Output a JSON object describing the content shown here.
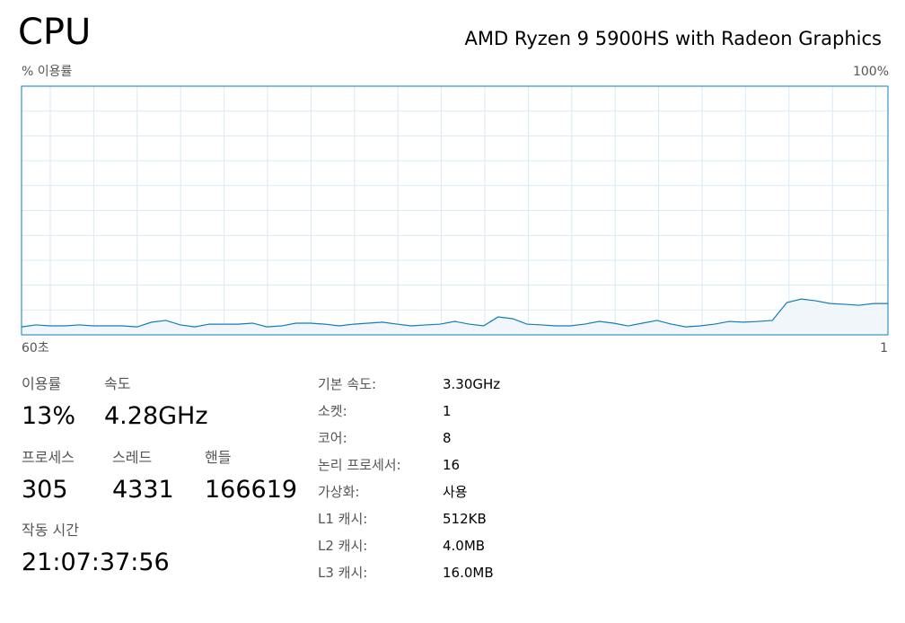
{
  "header": {
    "title": "CPU",
    "model": "AMD Ryzen 9 5900HS with Radeon Graphics"
  },
  "chart_data": {
    "type": "area",
    "y_label": "% 이용률",
    "x_start_label": "60초",
    "x_end_label": "1",
    "ylim": [
      0,
      100
    ],
    "yticks": [
      {
        "value": 100,
        "label": "100%"
      }
    ],
    "grid": true,
    "color": "#117dbb",
    "fill": "#f1f6fa",
    "values": [
      3.2,
      4.0,
      3.6,
      3.6,
      4.0,
      3.6,
      3.6,
      3.6,
      3.2,
      5.1,
      5.8,
      4.0,
      3.2,
      4.3,
      4.3,
      4.3,
      4.7,
      3.2,
      3.6,
      4.7,
      4.7,
      4.3,
      3.6,
      4.3,
      4.7,
      5.1,
      4.3,
      3.6,
      4.0,
      4.3,
      5.4,
      4.3,
      3.6,
      7.2,
      6.5,
      4.3,
      4.0,
      3.6,
      3.6,
      4.3,
      5.4,
      4.7,
      3.6,
      4.7,
      5.8,
      4.3,
      3.2,
      3.6,
      4.3,
      5.4,
      5.1,
      5.4,
      5.8,
      13.0,
      14.4,
      13.7,
      12.6,
      12.3,
      11.9,
      12.6,
      12.6
    ]
  },
  "stats": [
    {
      "label": "이용률",
      "value": "13%"
    },
    {
      "label": "속도",
      "value": "4.28GHz"
    },
    {
      "label": "프로세스",
      "value": "305"
    },
    {
      "label": "스레드",
      "value": "4331"
    },
    {
      "label": "핸들",
      "value": "166619"
    },
    {
      "label": "작동 시간",
      "value": "21:07:37:56"
    }
  ],
  "details": [
    {
      "label": "기본 속도:",
      "value": "3.30GHz"
    },
    {
      "label": "소켓:",
      "value": "1"
    },
    {
      "label": "코어:",
      "value": "8"
    },
    {
      "label": "논리 프로세서:",
      "value": "16"
    },
    {
      "label": "가상화:",
      "value": "사용"
    },
    {
      "label": "L1 캐시:",
      "value": "512KB"
    },
    {
      "label": "L2 캐시:",
      "value": "4.0MB"
    },
    {
      "label": "L3 캐시:",
      "value": "16.0MB"
    }
  ]
}
